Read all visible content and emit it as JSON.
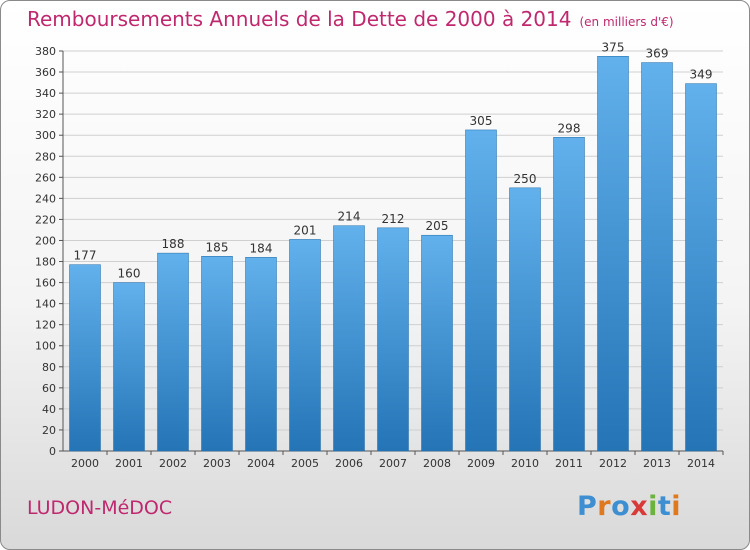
{
  "title": "Remboursements Annuels de la Dette de 2000 à 2014",
  "subtitle": "(en milliers d'€)",
  "commune": "LUDON-MéDOC",
  "logo": "Proxiti",
  "colors": {
    "title": "#c0286e",
    "bar_top": "#62b1ec",
    "bar_bottom": "#2474b6",
    "grid": "#cfcfcf",
    "logo_letters": [
      "#3d8fd2",
      "#e0781e",
      "#3d8fd2",
      "#d83a3a",
      "#6ab43e",
      "#3d8fd2",
      "#e0781e"
    ]
  },
  "chart_data": {
    "type": "bar",
    "title": "Remboursements Annuels de la Dette de 2000 à 2014",
    "subtitle": "(en milliers d'€)",
    "categories": [
      "2000",
      "2001",
      "2002",
      "2003",
      "2004",
      "2005",
      "2006",
      "2007",
      "2008",
      "2009",
      "2010",
      "2011",
      "2012",
      "2013",
      "2014"
    ],
    "values": [
      177,
      160,
      188,
      185,
      184,
      201,
      214,
      212,
      205,
      305,
      250,
      298,
      375,
      369,
      349
    ],
    "ylim": [
      0,
      380
    ],
    "yticks": [
      0,
      20,
      40,
      60,
      80,
      100,
      120,
      140,
      160,
      180,
      200,
      220,
      240,
      260,
      280,
      300,
      320,
      340,
      360,
      380
    ],
    "grid": true,
    "data_labels": true
  }
}
